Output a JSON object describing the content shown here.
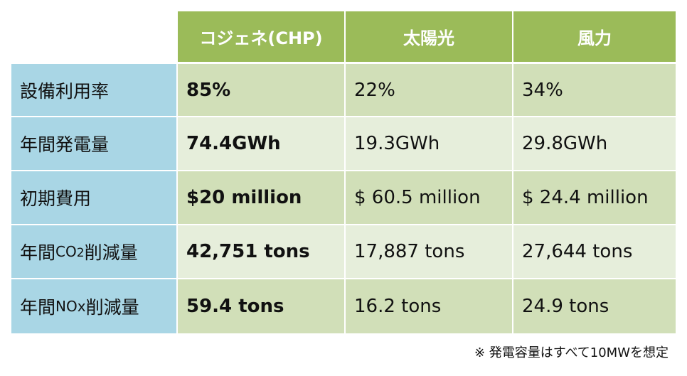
{
  "colors": {
    "header_green": "#9bbb59",
    "row_label_blue": "#a9d6e5",
    "data_row_dark": "#d1dfb8",
    "data_row_light": "#e6eedb"
  },
  "table": {
    "headers": [
      "コジェネ(CHP)",
      "太陽光",
      "風力"
    ],
    "rows": [
      {
        "label": "設備利用率",
        "chp": "85%",
        "solar": "22%",
        "wind": "34%"
      },
      {
        "label": "年間発電量",
        "chp": "74.4GWh",
        "solar": "19.3GWh",
        "wind": "29.8GWh"
      },
      {
        "label": "初期費用",
        "chp": "$20 million",
        "solar": "$ 60.5 million",
        "wind": "$ 24.4 million"
      },
      {
        "label_pre": "年間",
        "label_mid": "CO",
        "label_sub": "2",
        "label_post": "削減量",
        "chp": "42,751 tons",
        "solar": "17,887 tons",
        "wind": "27,644 tons"
      },
      {
        "label_pre": "年間",
        "label_mid": "NOx",
        "label_post": "削減量",
        "chp": "59.4 tons",
        "solar": "16.2 tons",
        "wind": "24.9 tons"
      }
    ]
  },
  "footnote": "※ 発電容量はすべて10MWを想定"
}
